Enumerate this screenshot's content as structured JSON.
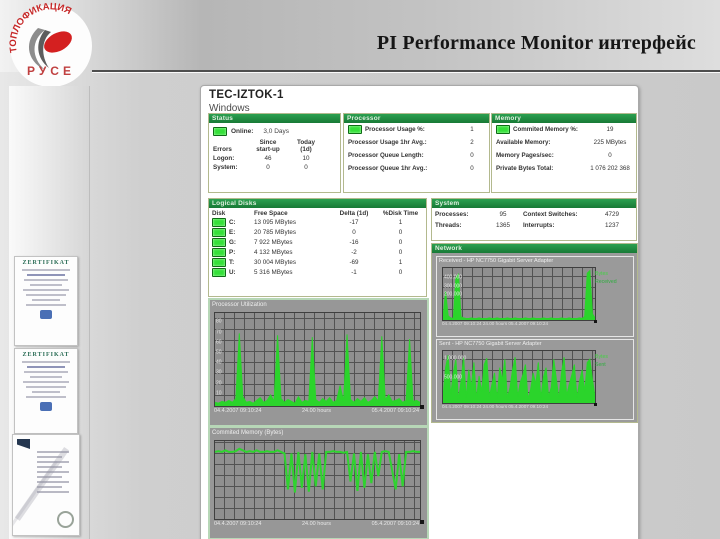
{
  "slide": {
    "title": "PI Performance Monitor интерфейс"
  },
  "logo": {
    "arc_text": "ТОПЛОФИКАЦИЯ",
    "city": "РУСЕ"
  },
  "sidebar": {
    "certificates": [
      {
        "title": "ZERTIFIKAT"
      },
      {
        "title": "ZERTIFIKAT"
      },
      {
        "title": ""
      }
    ]
  },
  "app": {
    "host": "TEC-IZTOK-1",
    "os": "Windows",
    "status": {
      "header": "Status",
      "online_label": "Online:",
      "uptime": "3,0 Days",
      "errors_label": "Errors",
      "col1_line1": "Since",
      "col1_line2": "start-up",
      "col2_line1": "Today",
      "col2_line2": "(1d)",
      "rows": [
        {
          "label": "Logon:",
          "since": "46",
          "today": "10"
        },
        {
          "label": "System:",
          "since": "0",
          "today": "0"
        }
      ]
    },
    "processor": {
      "header": "Processor",
      "rows": [
        {
          "label": "Processor Usage %:",
          "value": "1"
        },
        {
          "label": "Processor Usage 1hr Avg.:",
          "value": "2"
        },
        {
          "label": "Processor Queue Length:",
          "value": "0"
        },
        {
          "label": "Processor Queue 1hr Avg.:",
          "value": "0"
        }
      ]
    },
    "memory": {
      "header": "Memory",
      "rows": [
        {
          "label": "Commited Memory %:",
          "value": "19"
        },
        {
          "label": "Available Memory:",
          "value": "225 MBytes"
        },
        {
          "label": "Memory Pages/sec:",
          "value": "0"
        },
        {
          "label": "Private Bytes Total:",
          "value": "1 076 202 368"
        }
      ]
    },
    "disks": {
      "header": "Logical Disks",
      "columns": [
        "Disk",
        "Free Space",
        "Delta (1d)",
        "%Disk Time"
      ],
      "rows": [
        [
          "C:",
          "13 095 MBytes",
          "-17",
          "1"
        ],
        [
          "E:",
          "20 785 MBytes",
          "0",
          "0"
        ],
        [
          "G:",
          "7 922 MBytes",
          "-16",
          "0"
        ],
        [
          "P:",
          "4 132 MBytes",
          "-2",
          "0"
        ],
        [
          "T:",
          "30 004 MBytes",
          "-69",
          "1"
        ],
        [
          "U:",
          "5 316 MBytes",
          "-1",
          "0"
        ]
      ]
    },
    "system": {
      "header": "System",
      "items": [
        {
          "label": "Processes:",
          "value": "95"
        },
        {
          "label": "Context Switches:",
          "value": "4729"
        },
        {
          "label": "Threads:",
          "value": "1365"
        },
        {
          "label": "Interrupts:",
          "value": "1237"
        }
      ]
    },
    "network": {
      "header": "Network"
    }
  },
  "chart_data": [
    {
      "type": "line",
      "draw": "area",
      "title": "Processor Utilization",
      "color": "#2bd42b",
      "x_start": "04.4.2007 09:10:24",
      "x_mid": "24.00 hours",
      "x_end": "05.4.2007 09:10:24",
      "ylabel": "%",
      "ylim": [
        0,
        100
      ],
      "grid": true,
      "yticks": [
        "80",
        "70",
        "60",
        "50",
        "40",
        "30",
        "20",
        "10"
      ],
      "ytick_pos": [
        0.1,
        0.21,
        0.32,
        0.43,
        0.54,
        0.65,
        0.76,
        0.87
      ],
      "values_unit": "percent",
      "values": [
        4,
        3,
        5,
        4,
        6,
        4,
        8,
        78,
        10,
        4,
        5,
        3,
        6,
        9,
        4,
        6,
        12,
        5,
        76,
        8,
        4,
        7,
        5,
        3,
        10,
        4,
        6,
        5,
        74,
        7,
        4,
        8,
        5,
        9,
        4,
        6,
        22,
        5,
        77,
        7,
        4,
        8,
        5,
        9,
        4,
        6,
        10,
        5,
        75,
        7,
        12,
        5,
        6,
        8,
        4,
        6,
        72,
        5,
        6,
        4
      ]
    },
    {
      "type": "line",
      "draw": "line",
      "title": "Commited Memory (Bytes)",
      "color": "#2fd32f",
      "x_start": "04.4.2007 09:10:24",
      "x_mid": "24.00 hours",
      "x_end": "05.4.2007 09:10:24",
      "grid": true,
      "yticks": [],
      "values_unit": "percent_of_plot_height_estimated",
      "values": [
        86,
        87,
        86,
        88,
        86,
        86,
        87,
        90,
        88,
        86,
        87,
        86,
        88,
        86,
        86,
        87,
        86,
        86,
        88,
        86,
        84,
        38,
        84,
        34,
        86,
        40,
        83,
        35,
        86,
        42,
        84,
        38,
        86,
        86,
        87,
        86,
        86,
        85,
        86,
        48,
        84,
        36,
        86,
        40,
        83,
        46,
        86,
        55,
        86,
        87,
        86,
        62,
        38,
        83,
        42,
        86,
        86,
        87,
        86,
        86
      ]
    },
    {
      "type": "line",
      "draw": "area",
      "title": "Received - HP NC7750 Gigabit Server Adapter",
      "color": "#2bd42b",
      "x_axis": "04.4.2007 09:10:24 24.00 hours 05.4.2007 09:10:24",
      "grid": true,
      "yticks": [
        "400.000",
        "300.000",
        "200.000"
      ],
      "ytick_pos": [
        0.2,
        0.36,
        0.52
      ],
      "legend": [
        "Bytes",
        "Received"
      ],
      "values_unit": "percent_of_plot_height_estimated",
      "values": [
        6,
        55,
        8,
        4,
        3,
        82,
        88,
        6,
        4,
        3,
        3,
        4,
        3,
        3,
        4,
        3,
        3,
        3,
        4,
        3,
        3,
        4,
        3,
        3,
        3,
        4,
        3,
        3,
        4,
        3,
        3,
        3,
        4,
        3,
        3,
        4,
        3,
        3,
        3,
        4,
        3,
        3,
        4,
        3,
        3,
        3,
        4,
        3,
        3,
        4,
        3,
        3,
        3,
        4,
        3,
        7,
        90,
        95,
        12,
        4
      ]
    },
    {
      "type": "line",
      "draw": "area",
      "title": "Sent - HP NC7750 Gigabit Server Adapter",
      "color": "#2bd42b",
      "x_axis": "04.4.2007 09:10:24 24.00 hours 05.4.2007 09:10:24",
      "grid": true,
      "yticks": [
        "1.000.000",
        "500.000"
      ],
      "ytick_pos": [
        0.16,
        0.52
      ],
      "legend": [
        "Bytes",
        "Sent"
      ],
      "values_unit": "percent_of_plot_height_estimated",
      "values": [
        12,
        68,
        92,
        15,
        58,
        84,
        6,
        42,
        88,
        10,
        64,
        30,
        78,
        8,
        52,
        22,
        74,
        86,
        12,
        36,
        58,
        8,
        68,
        44,
        84,
        10,
        30,
        64,
        88,
        12,
        40,
        54,
        74,
        8,
        26,
        58,
        36,
        78,
        10,
        50,
        68,
        12,
        30,
        84,
        46,
        8,
        58,
        88,
        14,
        36,
        54,
        74,
        10,
        42,
        64,
        22,
        78,
        84,
        46,
        12
      ]
    }
  ]
}
